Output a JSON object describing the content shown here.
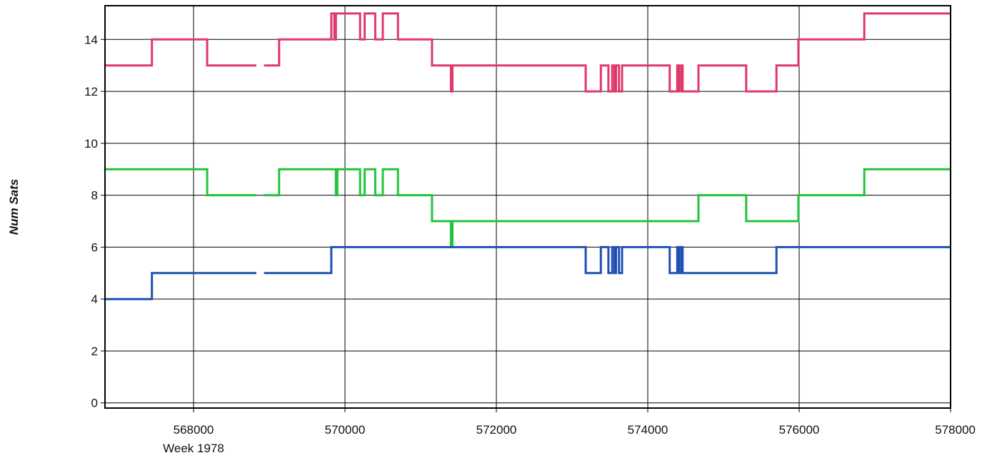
{
  "chart_data": {
    "type": "line",
    "title": "",
    "xlabel": "",
    "ylabel": "Num Sats",
    "x_sublabel": "Week 1978",
    "xlim": [
      566830,
      578000
    ],
    "ylim": [
      -0.2,
      15.3
    ],
    "xticks": [
      568000,
      570000,
      572000,
      574000,
      576000,
      578000
    ],
    "yticks": [
      0,
      2,
      4,
      6,
      8,
      10,
      12,
      14
    ],
    "grid": true,
    "legend": "none",
    "series": [
      {
        "color": "#e0386a",
        "segments": [
          [
            [
              566830,
              13
            ],
            [
              567450,
              13
            ],
            [
              567450,
              14
            ],
            [
              568180,
              14
            ],
            [
              568180,
              13
            ],
            [
              568830,
              13
            ]
          ],
          [
            [
              568930,
              13
            ],
            [
              569130,
              13
            ],
            [
              569130,
              14
            ],
            [
              569820,
              14
            ],
            [
              569820,
              15
            ],
            [
              569860,
              15
            ],
            [
              569860,
              14
            ],
            [
              569880,
              14
            ],
            [
              569880,
              15
            ],
            [
              570200,
              15
            ],
            [
              570200,
              14
            ],
            [
              570260,
              14
            ],
            [
              570260,
              15
            ],
            [
              570400,
              15
            ],
            [
              570400,
              14
            ],
            [
              570500,
              14
            ],
            [
              570500,
              15
            ],
            [
              570700,
              15
            ],
            [
              570700,
              14
            ],
            [
              571150,
              14
            ],
            [
              571150,
              13
            ],
            [
              571400,
              13
            ],
            [
              571400,
              12
            ],
            [
              571420,
              12
            ],
            [
              571420,
              13
            ],
            [
              573180,
              13
            ],
            [
              573180,
              12
            ],
            [
              573380,
              12
            ],
            [
              573380,
              13
            ],
            [
              573480,
              13
            ],
            [
              573480,
              12
            ],
            [
              573530,
              12
            ],
            [
              573530,
              13
            ],
            [
              573560,
              13
            ],
            [
              573560,
              12
            ],
            [
              573580,
              12
            ],
            [
              573580,
              13
            ],
            [
              573620,
              13
            ],
            [
              573620,
              12
            ],
            [
              573660,
              12
            ],
            [
              573660,
              13
            ],
            [
              574290,
              13
            ],
            [
              574290,
              12
            ],
            [
              574390,
              12
            ],
            [
              574390,
              13
            ],
            [
              574410,
              13
            ],
            [
              574410,
              12
            ],
            [
              574440,
              12
            ],
            [
              574440,
              13
            ],
            [
              574460,
              13
            ],
            [
              574460,
              12
            ],
            [
              574670,
              12
            ],
            [
              574670,
              13
            ],
            [
              575300,
              13
            ],
            [
              575300,
              12
            ],
            [
              575700,
              12
            ],
            [
              575700,
              13
            ],
            [
              575990,
              13
            ],
            [
              575990,
              14
            ],
            [
              576860,
              14
            ],
            [
              576860,
              15
            ],
            [
              578000,
              15
            ]
          ]
        ]
      },
      {
        "color": "#22c43c",
        "segments": [
          [
            [
              566830,
              9
            ],
            [
              568180,
              9
            ],
            [
              568180,
              8
            ],
            [
              568830,
              8
            ]
          ],
          [
            [
              568930,
              8
            ],
            [
              569130,
              8
            ],
            [
              569130,
              9
            ],
            [
              569880,
              9
            ],
            [
              569880,
              8
            ],
            [
              569900,
              8
            ],
            [
              569900,
              9
            ],
            [
              570200,
              9
            ],
            [
              570200,
              8
            ],
            [
              570260,
              8
            ],
            [
              570260,
              9
            ],
            [
              570400,
              9
            ],
            [
              570400,
              8
            ],
            [
              570500,
              8
            ],
            [
              570500,
              9
            ],
            [
              570700,
              9
            ],
            [
              570700,
              8
            ],
            [
              571150,
              8
            ],
            [
              571150,
              7
            ],
            [
              571400,
              7
            ],
            [
              571400,
              6
            ],
            [
              571420,
              6
            ],
            [
              571420,
              7
            ],
            [
              574670,
              7
            ],
            [
              574670,
              8
            ],
            [
              575300,
              8
            ],
            [
              575300,
              7
            ],
            [
              575990,
              7
            ],
            [
              575990,
              8
            ],
            [
              576860,
              8
            ],
            [
              576860,
              9
            ],
            [
              578000,
              9
            ]
          ]
        ]
      },
      {
        "color": "#1f50b4",
        "segments": [
          [
            [
              566830,
              4
            ],
            [
              567450,
              4
            ],
            [
              567450,
              5
            ],
            [
              568830,
              5
            ]
          ],
          [
            [
              568930,
              5
            ],
            [
              569820,
              5
            ],
            [
              569820,
              6
            ],
            [
              573180,
              6
            ],
            [
              573180,
              5
            ],
            [
              573380,
              5
            ],
            [
              573380,
              6
            ],
            [
              573480,
              6
            ],
            [
              573480,
              5
            ],
            [
              573530,
              5
            ],
            [
              573530,
              6
            ],
            [
              573560,
              6
            ],
            [
              573560,
              5
            ],
            [
              573580,
              5
            ],
            [
              573580,
              6
            ],
            [
              573620,
              6
            ],
            [
              573620,
              5
            ],
            [
              573660,
              5
            ],
            [
              573660,
              6
            ],
            [
              574290,
              6
            ],
            [
              574290,
              5
            ],
            [
              574390,
              5
            ],
            [
              574390,
              6
            ],
            [
              574410,
              6
            ],
            [
              574410,
              5
            ],
            [
              574440,
              5
            ],
            [
              574440,
              6
            ],
            [
              574460,
              6
            ],
            [
              574460,
              5
            ],
            [
              575700,
              5
            ],
            [
              575700,
              6
            ],
            [
              578000,
              6
            ]
          ]
        ]
      }
    ]
  }
}
